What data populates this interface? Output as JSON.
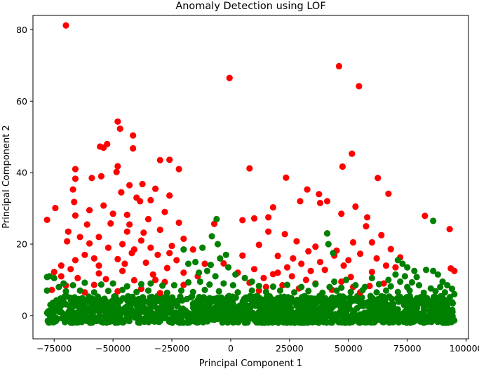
{
  "chart_data": {
    "type": "scatter",
    "title": "Anomaly Detection using LOF",
    "xlabel": "Principal Component 1",
    "ylabel": "Principal Component 2",
    "xlim": [
      -84000,
      101000
    ],
    "ylim": [
      -6.5,
      84
    ],
    "xticks": [
      -75000,
      -50000,
      -25000,
      0,
      25000,
      50000,
      75000,
      100000
    ],
    "xtick_labels": [
      "−75000",
      "−50000",
      "−25000",
      "0",
      "25000",
      "50000",
      "75000",
      "100000"
    ],
    "yticks": [
      0,
      20,
      40,
      60,
      80
    ],
    "ytick_labels": [
      "0",
      "20",
      "40",
      "60",
      "80"
    ],
    "grid": false,
    "legend": "none",
    "colors": {
      "anomaly": "#ff0000",
      "normal": "#008000"
    },
    "series": [
      {
        "color": "#ff0000",
        "points": [
          [
            -70000,
            81.2
          ],
          [
            46000,
            69.8
          ],
          [
            -500,
            66.5
          ],
          [
            54500,
            64.2
          ],
          [
            -48000,
            54.3
          ],
          [
            -47000,
            52.3
          ],
          [
            -41500,
            50.4
          ],
          [
            -52500,
            48.0
          ],
          [
            -55500,
            47.3
          ],
          [
            -54000,
            47.0
          ],
          [
            -41500,
            46.8
          ],
          [
            51500,
            45.3
          ],
          [
            -30000,
            43.5
          ],
          [
            -26000,
            43.6
          ],
          [
            -22000,
            41.0
          ],
          [
            -66000,
            41.0
          ],
          [
            8000,
            41.2
          ],
          [
            47500,
            41.7
          ],
          [
            -48000,
            41.8
          ],
          [
            -48500,
            40.2
          ],
          [
            -66000,
            38.3
          ],
          [
            -59000,
            38.5
          ],
          [
            -55000,
            39.0
          ],
          [
            23500,
            38.6
          ],
          [
            62500,
            38.5
          ],
          [
            -67000,
            35.3
          ],
          [
            -43000,
            36.5
          ],
          [
            -37500,
            36.8
          ],
          [
            -32000,
            35.5
          ],
          [
            -40000,
            33.0
          ],
          [
            37500,
            34.0
          ],
          [
            32500,
            35.3
          ],
          [
            -46500,
            34.5
          ],
          [
            -66500,
            31.8
          ],
          [
            -74500,
            30.1
          ],
          [
            -54000,
            30.8
          ],
          [
            -38500,
            32.0
          ],
          [
            -34000,
            32.3
          ],
          [
            -26000,
            33.6
          ],
          [
            67000,
            34.1
          ],
          [
            41000,
            32.0
          ],
          [
            29500,
            32.0
          ],
          [
            -60000,
            29.5
          ],
          [
            -50000,
            28.5
          ],
          [
            18000,
            30.3
          ],
          [
            53000,
            30.5
          ],
          [
            16000,
            27.5
          ],
          [
            -66000,
            28.0
          ],
          [
            38000,
            31.5
          ],
          [
            82500,
            27.9
          ],
          [
            -78000,
            26.8
          ],
          [
            -35000,
            27.0
          ],
          [
            -43000,
            25.5
          ],
          [
            10000,
            27.2
          ],
          [
            5000,
            26.7
          ],
          [
            47000,
            28.5
          ],
          [
            58000,
            27.5
          ],
          [
            -30000,
            24.0
          ],
          [
            93000,
            24.2
          ],
          [
            -69000,
            23.5
          ],
          [
            -44000,
            23.5
          ],
          [
            -7000,
            25.7
          ],
          [
            -56000,
            22.0
          ],
          [
            23000,
            22.8
          ],
          [
            64000,
            22.5
          ],
          [
            -38000,
            21.0
          ],
          [
            -60000,
            20.2
          ],
          [
            -20000,
            21.5
          ],
          [
            28000,
            20.8
          ],
          [
            52000,
            20.5
          ],
          [
            -69500,
            20.8
          ],
          [
            -52000,
            19.0
          ],
          [
            -25000,
            19.5
          ],
          [
            -42000,
            17.5
          ],
          [
            36000,
            19.3
          ],
          [
            45000,
            18.2
          ],
          [
            12000,
            19.8
          ],
          [
            -62000,
            17.0
          ],
          [
            -31000,
            17.0
          ],
          [
            55000,
            17.3
          ],
          [
            -48000,
            15.8
          ],
          [
            -66000,
            15.5
          ],
          [
            -58000,
            16.0
          ],
          [
            -36000,
            14.8
          ],
          [
            -23000,
            15.5
          ],
          [
            20000,
            16.7
          ],
          [
            62000,
            16.0
          ],
          [
            -72000,
            14.0
          ],
          [
            -56000,
            14.0
          ],
          [
            -27000,
            13.3
          ],
          [
            30000,
            14.5
          ],
          [
            48000,
            14.0
          ],
          [
            70000,
            13.5
          ],
          [
            -75000,
            12.2
          ],
          [
            -46000,
            12.5
          ],
          [
            -33000,
            11.5
          ],
          [
            18000,
            11.6
          ],
          [
            40000,
            12.8
          ],
          [
            60000,
            12.2
          ],
          [
            -65000,
            10.5
          ],
          [
            -53000,
            10.2
          ],
          [
            -41000,
            9.9
          ],
          [
            -28000,
            9.4
          ],
          [
            14000,
            10.5
          ],
          [
            26000,
            11.0
          ],
          [
            51000,
            10.8
          ],
          [
            93500,
            13.2
          ],
          [
            95000,
            12.5
          ],
          [
            -58000,
            8.6
          ],
          [
            8000,
            9.2
          ],
          [
            36000,
            9.0
          ],
          [
            47000,
            9.5
          ],
          [
            -70000,
            8.4
          ],
          [
            -20000,
            8.6
          ],
          [
            -3000,
            14.6
          ],
          [
            22000,
            8.5
          ],
          [
            59000,
            8.3
          ],
          [
            -38000,
            7.5
          ],
          [
            29000,
            7.6
          ],
          [
            65000,
            9.0
          ],
          [
            -62000,
            6.5
          ],
          [
            -48000,
            6.8
          ],
          [
            12000,
            7.0
          ],
          [
            43000,
            7.2
          ],
          [
            -76000,
            7.2
          ],
          [
            -30000,
            6.3
          ],
          [
            55000,
            6.5
          ],
          [
            -16000,
            18.5
          ],
          [
            -11000,
            14.5
          ],
          [
            3000,
            12.0
          ],
          [
            -14000,
            11.0
          ],
          [
            -44000,
            28.2
          ],
          [
            -51000,
            25.8
          ],
          [
            -37000,
            23.2
          ],
          [
            16000,
            23.5
          ],
          [
            41000,
            23.0
          ],
          [
            57500,
            25.0
          ],
          [
            -61000,
            25.5
          ],
          [
            -34000,
            19.0
          ],
          [
            26500,
            16.0
          ],
          [
            44000,
            16.8
          ],
          [
            68000,
            18.6
          ],
          [
            -46000,
            20.0
          ],
          [
            -26000,
            17.5
          ],
          [
            33000,
            18.0
          ],
          [
            60000,
            20.5
          ],
          [
            -56000,
            11.8
          ],
          [
            -45000,
            14.5
          ],
          [
            5000,
            16.8
          ],
          [
            34000,
            12.5
          ],
          [
            72000,
            16.3
          ],
          [
            -72000,
            11.0
          ],
          [
            -32000,
            10.0
          ],
          [
            10000,
            13.0
          ],
          [
            38000,
            15.0
          ],
          [
            66000,
            14.0
          ],
          [
            -41000,
            18.5
          ],
          [
            -20000,
            12.0
          ],
          [
            24000,
            13.5
          ],
          [
            50000,
            15.5
          ],
          [
            -68000,
            13.0
          ],
          [
            -22000,
            26.0
          ],
          [
            -64000,
            22.0
          ],
          [
            -28000,
            29.0
          ],
          [
            15000,
            8.0
          ],
          [
            20000,
            12.0
          ],
          [
            32000,
            10.0
          ],
          [
            52000,
            8.0
          ]
        ]
      },
      {
        "color": "#008000",
        "points": [
          [
            86000,
            26.5
          ],
          [
            -6000,
            27.0
          ],
          [
            -8000,
            22.2
          ],
          [
            -5500,
            20.0
          ],
          [
            -12000,
            19.0
          ],
          [
            -20000,
            18.5
          ],
          [
            41000,
            23.0
          ],
          [
            41500,
            20.0
          ],
          [
            43500,
            17.5
          ],
          [
            -4500,
            16.0
          ],
          [
            -2000,
            17.0
          ],
          [
            -15000,
            15.0
          ],
          [
            -8500,
            14.2
          ],
          [
            -18000,
            14.5
          ],
          [
            -1000,
            13.5
          ],
          [
            71000,
            15.5
          ],
          [
            73000,
            14.5
          ],
          [
            75000,
            13.5
          ],
          [
            78000,
            12.5
          ],
          [
            83000,
            12.8
          ],
          [
            86000,
            12.5
          ],
          [
            88000,
            11.5
          ],
          [
            79000,
            10.8
          ],
          [
            -10000,
            12.5
          ],
          [
            -13500,
            12.0
          ],
          [
            -6500,
            11.0
          ],
          [
            2000,
            11.5
          ],
          [
            70000,
            11.5
          ],
          [
            74000,
            11.0
          ],
          [
            -78000,
            10.8
          ],
          [
            -77000,
            11.0
          ],
          [
            -75000,
            10.5
          ],
          [
            6000,
            10.5
          ],
          [
            9000,
            9.5
          ],
          [
            44000,
            9.5
          ],
          [
            49000,
            10.0
          ],
          [
            60000,
            10.5
          ],
          [
            67000,
            10.0
          ],
          [
            72000,
            9.5
          ],
          [
            77000,
            9.3
          ],
          [
            90000,
            9.5
          ],
          [
            92000,
            8.5
          ],
          [
            -73000,
            8.0
          ],
          [
            -71000,
            9.0
          ],
          [
            -67000,
            8.5
          ],
          [
            -62000,
            9.2
          ],
          [
            -55000,
            8.7
          ],
          [
            -50000,
            9.0
          ],
          [
            -44000,
            8.2
          ],
          [
            -38000,
            8.8
          ],
          [
            -34000,
            9.0
          ],
          [
            -29000,
            8.4
          ],
          [
            -24000,
            8.5
          ],
          [
            -18000,
            9.3
          ],
          [
            -13000,
            9.5
          ],
          [
            -9000,
            8.7
          ],
          [
            -3000,
            9.0
          ],
          [
            1000,
            8.5
          ],
          [
            12000,
            8.3
          ],
          [
            18000,
            8.1
          ],
          [
            24000,
            8.6
          ],
          [
            30000,
            8.0
          ],
          [
            36000,
            8.8
          ],
          [
            42000,
            8.0
          ],
          [
            47000,
            7.8
          ],
          [
            53000,
            8.5
          ],
          [
            57000,
            8.0
          ],
          [
            63000,
            8.8
          ],
          [
            68000,
            8.2
          ],
          [
            75000,
            8.0
          ],
          [
            80000,
            8.5
          ],
          [
            85000,
            7.6
          ],
          [
            89000,
            8.0
          ],
          [
            94000,
            7.5
          ],
          [
            -78000,
            7.0
          ],
          [
            -70000,
            6.8
          ],
          [
            -64000,
            7.0
          ],
          [
            -58000,
            6.5
          ],
          [
            -52000,
            6.9
          ],
          [
            -46000,
            7.2
          ],
          [
            -40000,
            6.6
          ],
          [
            -35000,
            7.0
          ],
          [
            -27000,
            6.4
          ],
          [
            -21000,
            7.0
          ],
          [
            -16000,
            6.6
          ],
          [
            -11000,
            7.2
          ],
          [
            -5000,
            6.8
          ],
          [
            3000,
            6.5
          ],
          [
            9000,
            7.0
          ],
          [
            15000,
            6.6
          ],
          [
            21000,
            7.0
          ],
          [
            27000,
            6.5
          ],
          [
            33000,
            6.9
          ],
          [
            39000,
            6.4
          ],
          [
            45000,
            7.0
          ],
          [
            51000,
            6.6
          ],
          [
            56000,
            7.1
          ],
          [
            62000,
            6.5
          ],
          [
            66000,
            7.0
          ],
          [
            71000,
            6.6
          ],
          [
            76000,
            7.0
          ],
          [
            82000,
            6.4
          ],
          [
            87000,
            6.8
          ],
          [
            91000,
            6.5
          ],
          [
            95000,
            6.0
          ]
        ]
      },
      {
        "color": "#008000",
        "band": {
          "x_range": [
            -78000,
            95000
          ],
          "y_range": [
            -2.0,
            5.5
          ],
          "description": "dense cluster of normal points"
        }
      }
    ]
  }
}
